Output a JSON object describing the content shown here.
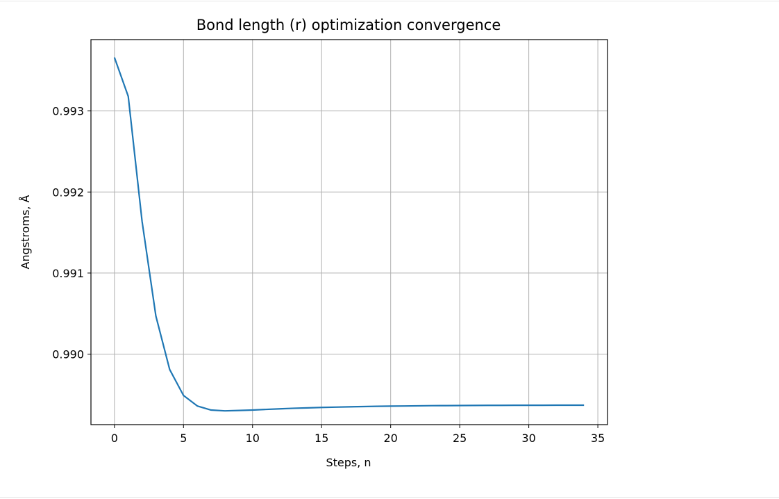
{
  "chart_data": {
    "type": "line",
    "title": "Bond length (r) optimization convergence",
    "xlabel": "Steps, n",
    "ylabel": "Angstroms, Å",
    "xlim": [
      -1.7,
      35.7
    ],
    "ylim": [
      0.98913,
      0.99388
    ],
    "xticks": [
      0,
      5,
      10,
      15,
      20,
      25,
      30,
      35
    ],
    "yticks": [
      0.99,
      0.991,
      0.992,
      0.993
    ],
    "ytick_labels": [
      "0.990",
      "0.991",
      "0.992",
      "0.993"
    ],
    "grid": true,
    "line_color": "#1f77b4",
    "series": [
      {
        "x": [
          0,
          1,
          2,
          3,
          4,
          5,
          6,
          7,
          8,
          9,
          10,
          11,
          12,
          13,
          14,
          15,
          16,
          17,
          18,
          19,
          20,
          21,
          22,
          23,
          24,
          25,
          26,
          27,
          28,
          29,
          30,
          31,
          32,
          33,
          34
        ],
        "y": [
          0.99366,
          0.99318,
          0.99164,
          0.99047,
          0.98981,
          0.98949,
          0.98936,
          0.98931,
          0.9893,
          0.989305,
          0.98931,
          0.989318,
          0.989325,
          0.989332,
          0.989337,
          0.989342,
          0.989346,
          0.98935,
          0.989353,
          0.989356,
          0.989358,
          0.98936,
          0.989362,
          0.989364,
          0.989365,
          0.989366,
          0.989367,
          0.989368,
          0.989368,
          0.989369,
          0.989369,
          0.989369,
          0.98937,
          0.98937,
          0.98937
        ]
      }
    ]
  }
}
